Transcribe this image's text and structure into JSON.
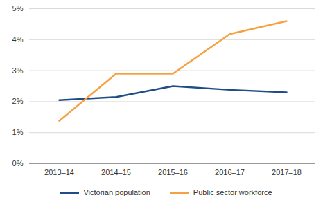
{
  "chart_data": {
    "type": "line",
    "categories": [
      "2013–14",
      "2014–15",
      "2015–16",
      "2016–17",
      "2017–18"
    ],
    "series": [
      {
        "name": "Victorian population",
        "color": "#1f4e86",
        "values": [
          2.05,
          2.15,
          2.5,
          2.38,
          2.3
        ]
      },
      {
        "name": "Public sector workforce",
        "color": "#f6a243",
        "values": [
          1.38,
          2.9,
          2.9,
          4.18,
          4.6
        ]
      }
    ],
    "ylim": [
      0,
      5
    ],
    "yticks": [
      {
        "value": 0,
        "label": "0%"
      },
      {
        "value": 1,
        "label": "1%"
      },
      {
        "value": 2,
        "label": "2%"
      },
      {
        "value": 3,
        "label": "3%"
      },
      {
        "value": 4,
        "label": "4%"
      },
      {
        "value": 5,
        "label": "5%"
      }
    ],
    "grid": true,
    "legend": "bottom"
  }
}
